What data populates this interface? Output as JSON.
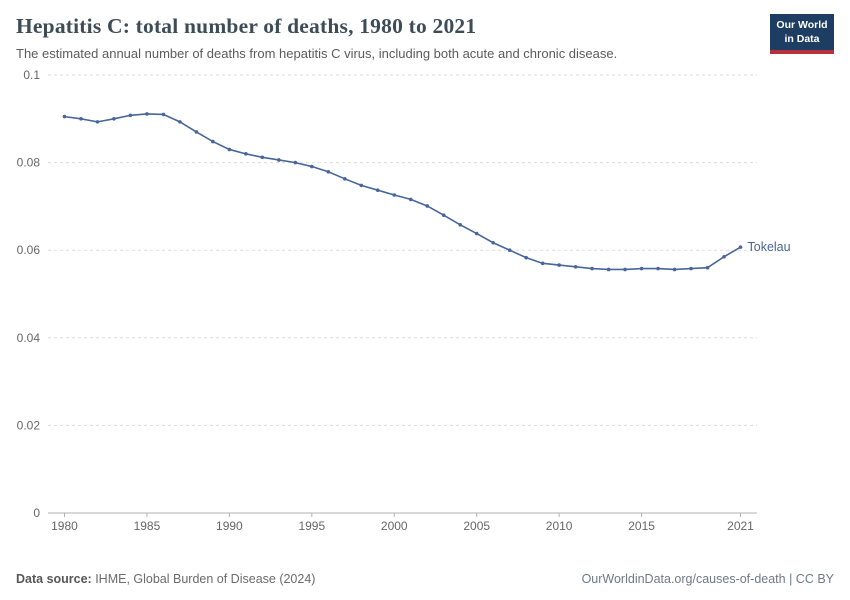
{
  "header": {
    "title": "Hepatitis C: total number of deaths, 1980 to 2021",
    "subtitle": "The estimated annual number of deaths from hepatitis C virus, including both acute and chronic disease.",
    "logo": {
      "line1": "Our World",
      "line2": "in Data",
      "bg_color": "#1d3d63",
      "accent_color": "#b5323e"
    }
  },
  "footer": {
    "source_label": "Data source:",
    "source_text": " IHME, Global Burden of Disease (2024)",
    "credit": "OurWorldinData.org/causes-of-death | CC BY"
  },
  "chart_data": {
    "type": "line",
    "title": "Hepatitis C: total number of deaths, 1980 to 2021",
    "subtitle": "The estimated annual number of deaths from hepatitis C virus, including both acute and chronic disease.",
    "xlabel": "",
    "ylabel": "",
    "xlim": [
      1979,
      2022
    ],
    "ylim": [
      0,
      0.1
    ],
    "yticks": [
      0,
      0.02,
      0.04,
      0.06,
      0.08,
      0.1
    ],
    "xticks": [
      1980,
      1985,
      1990,
      1995,
      2000,
      2005,
      2010,
      2015,
      2021
    ],
    "grid": true,
    "legend_position": "end-of-line",
    "series": [
      {
        "name": "Tokelau",
        "color": "#48669b",
        "x": [
          1980,
          1981,
          1982,
          1983,
          1984,
          1985,
          1986,
          1987,
          1988,
          1989,
          1990,
          1991,
          1992,
          1993,
          1994,
          1995,
          1996,
          1997,
          1998,
          1999,
          2000,
          2001,
          2002,
          2003,
          2004,
          2005,
          2006,
          2007,
          2008,
          2009,
          2010,
          2011,
          2012,
          2013,
          2014,
          2015,
          2016,
          2017,
          2018,
          2019,
          2020,
          2021
        ],
        "values": [
          0.0905,
          0.09,
          0.0893,
          0.09,
          0.0908,
          0.0911,
          0.091,
          0.0893,
          0.087,
          0.0848,
          0.083,
          0.082,
          0.0812,
          0.0806,
          0.08,
          0.0791,
          0.0779,
          0.0763,
          0.0748,
          0.0737,
          0.0726,
          0.0716,
          0.0701,
          0.068,
          0.0658,
          0.0638,
          0.0617,
          0.06,
          0.0583,
          0.057,
          0.0566,
          0.0562,
          0.0558,
          0.0556,
          0.0556,
          0.0558,
          0.0558,
          0.0556,
          0.0558,
          0.056,
          0.0585,
          0.0607
        ]
      }
    ]
  }
}
